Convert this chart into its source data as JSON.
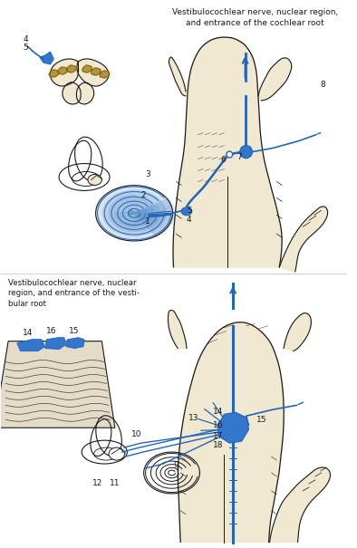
{
  "bg_color": "#FFFFFF",
  "line_color": "#1a1a1a",
  "blue_color": "#2266BB",
  "blue_fill": "#3377CC",
  "light_blue": "#6699CC",
  "gold_color": "#A08020",
  "skin_color": "#F0E8D0",
  "skin_dark": "#D8CCB0",
  "title_top": "Vestibulocochlear nerve, nuclear region,\nand entrance of the cochlear root",
  "title_bottom_label": "Vestibulocochlear nerve, nuclear\nregion, and entrance of the vesti-\nbular root",
  "label_fs": 6.5
}
